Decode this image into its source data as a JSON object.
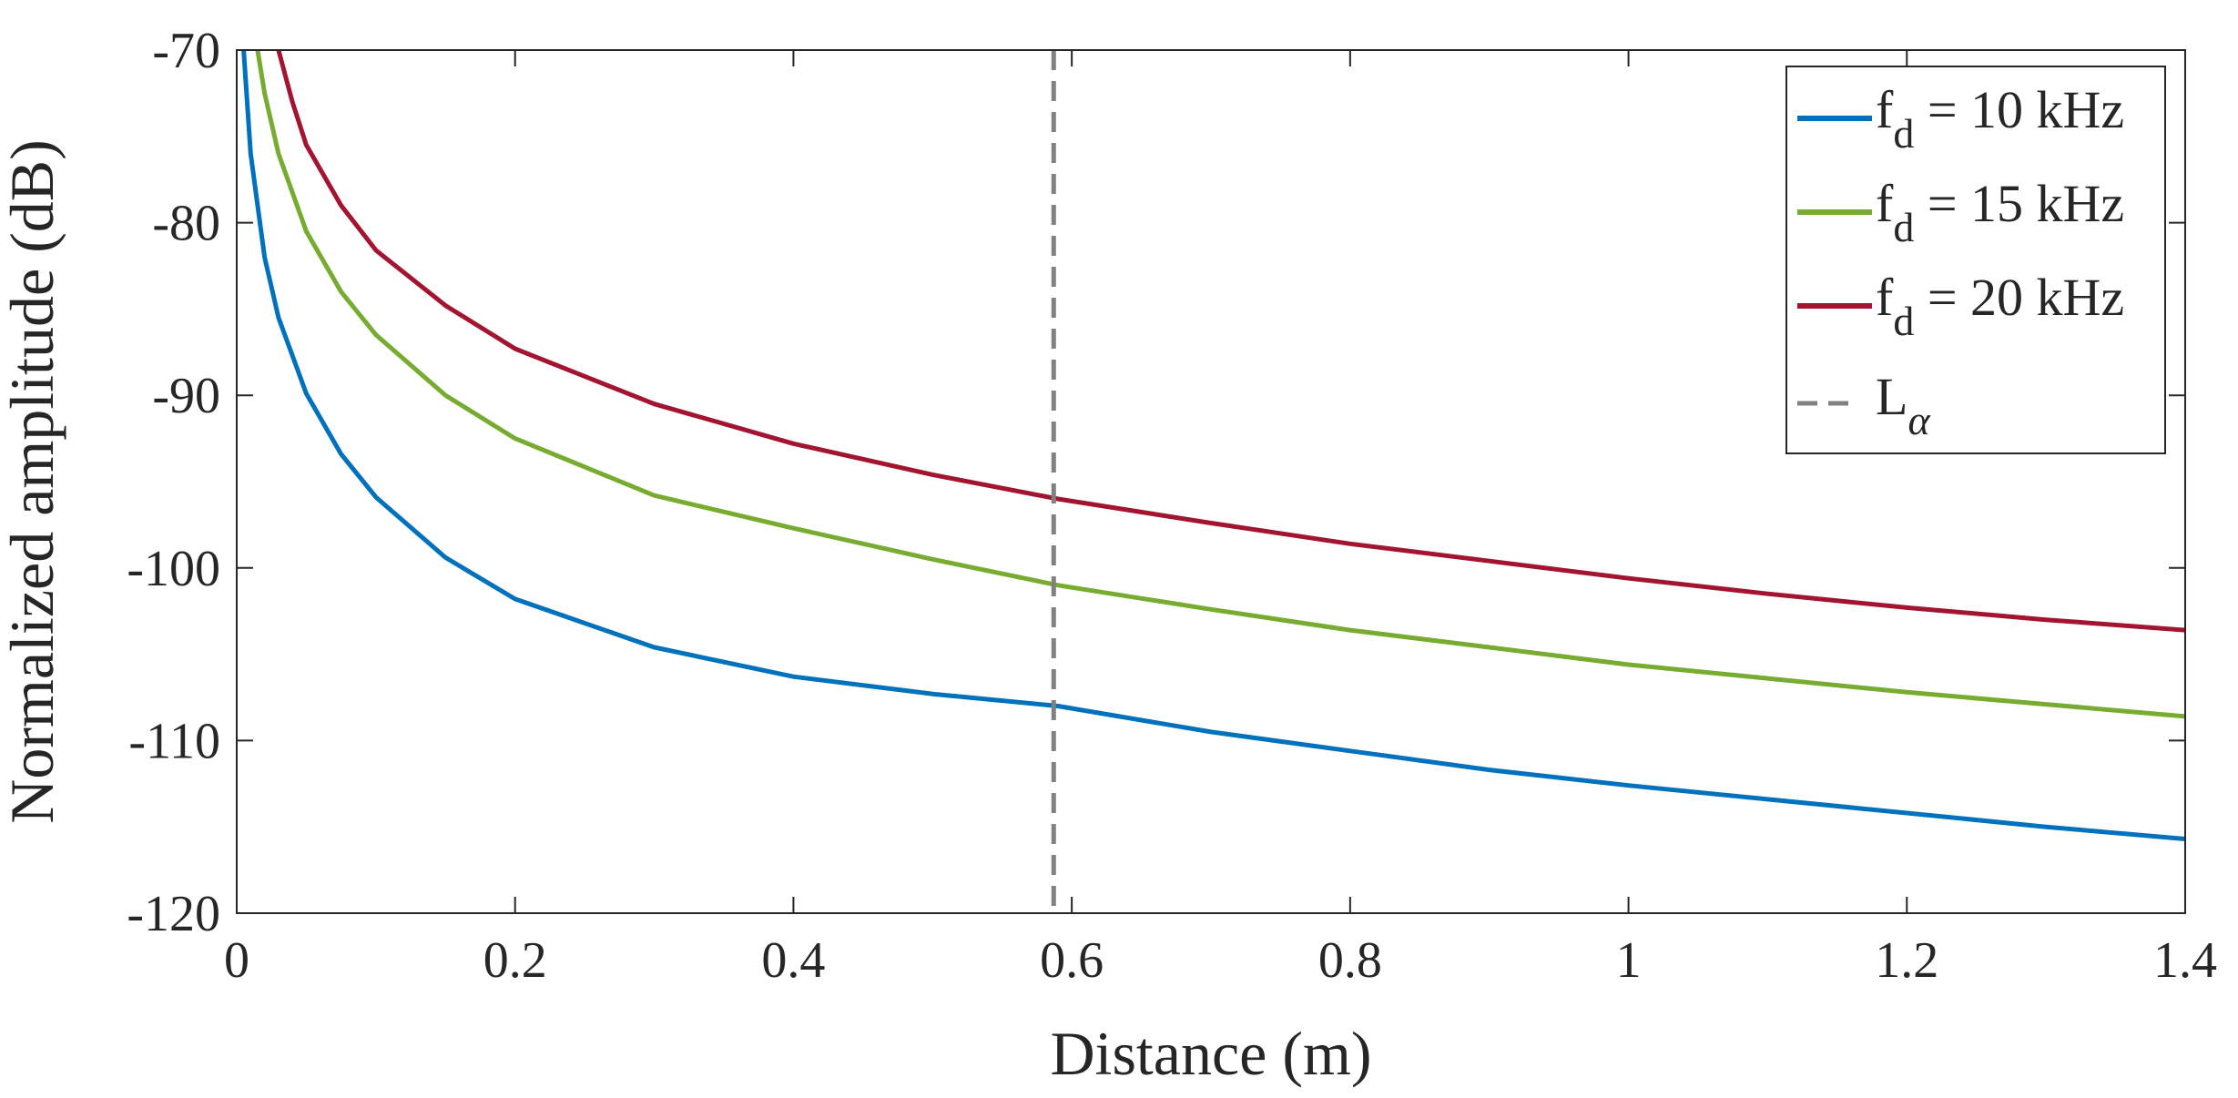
{
  "chart_data": {
    "type": "line",
    "xlabel": "Distance (m)",
    "ylabel": "Normalized amplitude (dB)",
    "xlim": [
      0,
      1.4
    ],
    "ylim": [
      -120,
      -70
    ],
    "xticks": [
      0,
      0.2,
      0.4,
      0.6,
      0.8,
      1,
      1.2,
      1.4
    ],
    "xtick_labels": [
      "0",
      "0.2",
      "0.4",
      "0.6",
      "0.8",
      "1",
      "1.2",
      "1.4"
    ],
    "yticks": [
      -120,
      -110,
      -100,
      -90,
      -80,
      -70
    ],
    "ytick_labels": [
      "-120",
      "-110",
      "-100",
      "-90",
      "-80",
      "-70"
    ],
    "grid": false,
    "legend_position": "top-right",
    "series": [
      {
        "name": "f_d = 10 kHz",
        "label_main": "f",
        "label_sub": "d",
        "label_rest": " = 10 kHz",
        "color": "#0072BD",
        "x": [
          0.005,
          0.01,
          0.02,
          0.03,
          0.05,
          0.075,
          0.1,
          0.15,
          0.2,
          0.3,
          0.4,
          0.5,
          0.59,
          0.7,
          0.8,
          0.9,
          1.0,
          1.1,
          1.2,
          1.3,
          1.4
        ],
        "y": [
          -70.0,
          -76.0,
          -82.0,
          -85.5,
          -89.9,
          -93.4,
          -95.9,
          -99.4,
          -101.8,
          -104.6,
          -106.3,
          -107.3,
          -108.0,
          -109.5,
          -110.6,
          -111.7,
          -112.6,
          -113.4,
          -114.2,
          -115.0,
          -115.7
        ]
      },
      {
        "name": "f_d = 15 kHz",
        "label_main": "f",
        "label_sub": "d",
        "label_rest": " = 15 kHz",
        "color": "#77AC30",
        "x": [
          0.015,
          0.02,
          0.03,
          0.05,
          0.075,
          0.1,
          0.15,
          0.2,
          0.3,
          0.4,
          0.5,
          0.59,
          0.7,
          0.8,
          0.9,
          1.0,
          1.1,
          1.2,
          1.3,
          1.4
        ],
        "y": [
          -70.0,
          -72.5,
          -76.0,
          -80.5,
          -84.0,
          -86.5,
          -90.0,
          -92.5,
          -95.8,
          -97.7,
          -99.5,
          -101.0,
          -102.4,
          -103.6,
          -104.6,
          -105.6,
          -106.4,
          -107.2,
          -107.9,
          -108.6
        ]
      },
      {
        "name": "f_d = 20 kHz",
        "label_main": "f",
        "label_sub": "d",
        "label_rest": " = 20 kHz",
        "color": "#A2142F",
        "x": [
          0.03,
          0.04,
          0.05,
          0.075,
          0.1,
          0.15,
          0.2,
          0.3,
          0.4,
          0.5,
          0.59,
          0.7,
          0.8,
          0.9,
          1.0,
          1.1,
          1.2,
          1.3,
          1.4
        ],
        "y": [
          -70.0,
          -73.0,
          -75.5,
          -79.0,
          -81.6,
          -84.8,
          -87.3,
          -90.5,
          -92.8,
          -94.6,
          -96.0,
          -97.4,
          -98.6,
          -99.6,
          -100.6,
          -101.5,
          -102.3,
          -103.0,
          -103.6
        ]
      }
    ],
    "vline": {
      "name": "L_alpha",
      "label_main": "L",
      "label_sub": "α",
      "x": 0.587,
      "color": "#808080",
      "style": "dashed"
    }
  }
}
